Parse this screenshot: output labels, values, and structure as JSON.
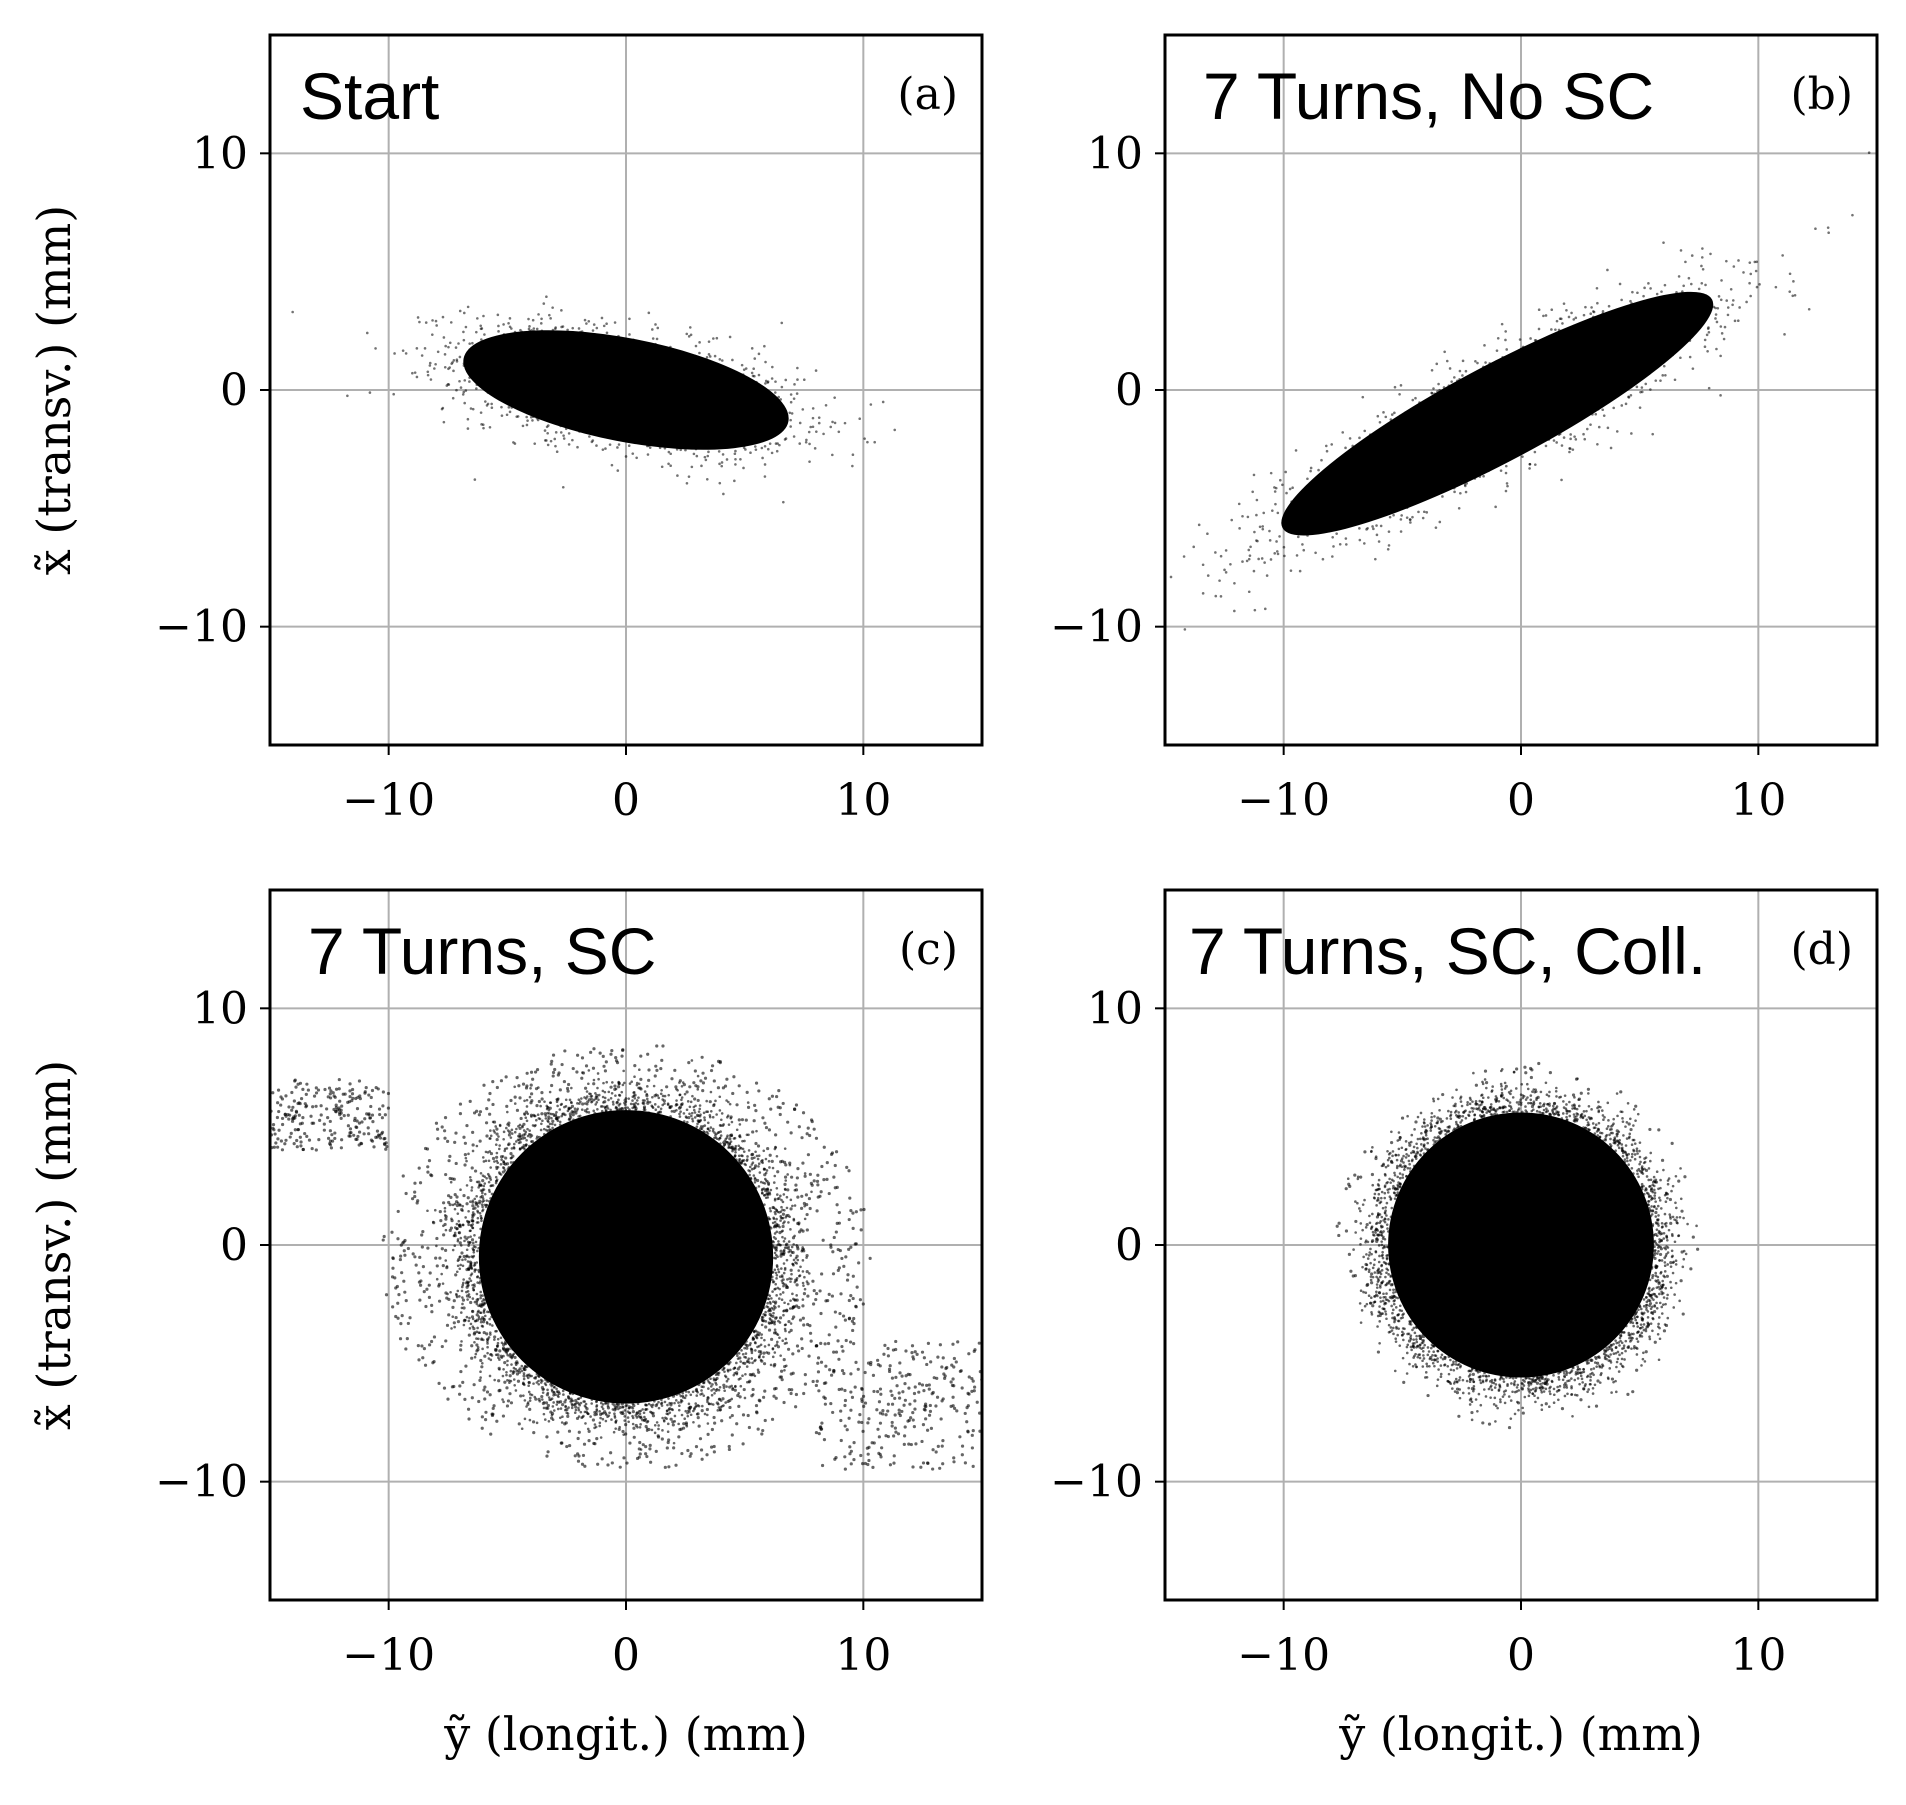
{
  "chart_data": [
    {
      "type": "scatter",
      "panel_label": "(a)",
      "title": "Start",
      "xlabel": "",
      "ylabel": "x̃ (transv.)  (mm)",
      "xlim": [
        -15,
        15
      ],
      "ylim": [
        -15,
        15
      ],
      "xticks": [
        -10,
        0,
        10
      ],
      "yticks": [
        -10,
        0,
        10
      ],
      "xtick_labels": [
        "−10",
        "0",
        "10"
      ],
      "ytick_labels": [
        "−10",
        "0",
        "10"
      ],
      "grid": true,
      "color": "#000000",
      "distribution": {
        "shape": "ellipse",
        "center": [
          0,
          0
        ],
        "semi_axes": [
          8.5,
          2.8
        ],
        "tilt_deg": -11
      }
    },
    {
      "type": "scatter",
      "panel_label": "(b)",
      "title": "7 Turns, No SC",
      "xlabel": "",
      "ylabel": "",
      "xlim": [
        -15,
        15
      ],
      "ylim": [
        -15,
        15
      ],
      "xticks": [
        -10,
        0,
        10
      ],
      "yticks": [
        -10,
        0,
        10
      ],
      "xtick_labels": [
        "−10",
        "0",
        "10"
      ],
      "ytick_labels": [
        "−10",
        "0",
        "10"
      ],
      "grid": true,
      "color": "#000000",
      "distribution": {
        "shape": "ellipse",
        "center": [
          -1,
          -1
        ],
        "semi_axes": [
          12.5,
          2.6
        ],
        "tilt_deg": 28
      }
    },
    {
      "type": "scatter",
      "panel_label": "(c)",
      "title": "7 Turns, SC",
      "xlabel": "ỹ (longit.)  (mm)",
      "ylabel": "x̃ (transv.)  (mm)",
      "xlim": [
        -15,
        15
      ],
      "ylim": [
        -15,
        15
      ],
      "xticks": [
        -10,
        0,
        10
      ],
      "yticks": [
        -10,
        0,
        10
      ],
      "xtick_labels": [
        "−10",
        "0",
        "10"
      ],
      "ytick_labels": [
        "−10",
        "0",
        "10"
      ],
      "grid": true,
      "color": "#000000",
      "distribution": {
        "shape": "disk_with_halo",
        "center": [
          0,
          -0.5
        ],
        "core_radius": 6.2,
        "halo_range_x": [
          -15,
          15
        ],
        "halo_range_y": [
          -9.5,
          8.5
        ]
      }
    },
    {
      "type": "scatter",
      "panel_label": "(d)",
      "title": "7 Turns, SC, Coll.",
      "xlabel": "ỹ (longit.)  (mm)",
      "ylabel": "",
      "xlim": [
        -15,
        15
      ],
      "ylim": [
        -15,
        15
      ],
      "xticks": [
        -10,
        0,
        10
      ],
      "yticks": [
        -10,
        0,
        10
      ],
      "xtick_labels": [
        "−10",
        "0",
        "10"
      ],
      "ytick_labels": [
        "−10",
        "0",
        "10"
      ],
      "grid": true,
      "color": "#000000",
      "distribution": {
        "shape": "disk",
        "center": [
          0,
          0
        ],
        "core_radius": 5.6,
        "halo_range_x": [
          -7.5,
          8
        ],
        "halo_range_y": [
          -7.5,
          7.5
        ]
      }
    }
  ]
}
